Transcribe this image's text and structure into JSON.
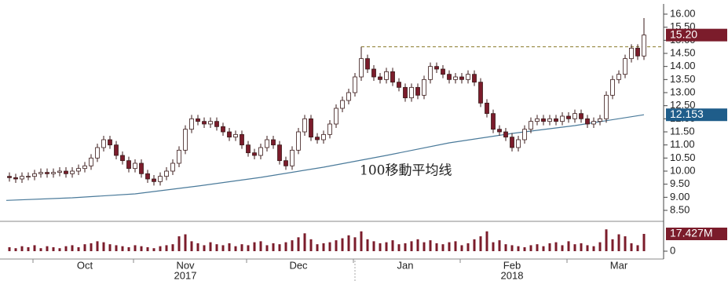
{
  "chart_data": {
    "type": "candlestick",
    "categories": [
      null,
      null,
      null,
      null,
      null,
      null,
      null,
      null,
      null,
      null,
      null,
      null,
      "Oct",
      null,
      null,
      null,
      null,
      null,
      null,
      null,
      null,
      null,
      null,
      null,
      null,
      null,
      null,
      null,
      "Nov",
      null,
      null,
      null,
      null,
      null,
      null,
      null,
      null,
      null,
      null,
      null,
      null,
      null,
      null,
      null,
      null,
      null,
      "Dec",
      null,
      null,
      null,
      null,
      null,
      null,
      null,
      null,
      null,
      null,
      null,
      null,
      null,
      null,
      null,
      null,
      "Jan",
      null,
      null,
      null,
      null,
      null,
      null,
      null,
      null,
      null,
      null,
      null,
      null,
      null,
      null,
      null,
      null,
      "Feb",
      null,
      null,
      null,
      null,
      null,
      null,
      null,
      null,
      null,
      null,
      null,
      null,
      null,
      null,
      null,
      null,
      "Mar",
      null,
      null,
      null,
      null
    ],
    "year_categories": [
      null,
      null,
      null,
      null,
      null,
      null,
      null,
      null,
      null,
      null,
      null,
      null,
      null,
      null,
      null,
      null,
      null,
      null,
      null,
      null,
      null,
      null,
      null,
      null,
      null,
      null,
      null,
      null,
      "2017",
      null,
      null,
      null,
      null,
      null,
      null,
      null,
      null,
      null,
      null,
      null,
      null,
      null,
      null,
      null,
      null,
      null,
      null,
      null,
      null,
      null,
      null,
      null,
      null,
      null,
      null,
      null,
      null,
      null,
      null,
      null,
      null,
      null,
      null,
      null,
      null,
      null,
      null,
      null,
      null,
      null,
      null,
      null,
      null,
      null,
      null,
      null,
      null,
      null,
      null,
      null,
      "2018",
      null,
      null,
      null,
      null,
      null,
      null,
      null,
      null,
      null,
      null,
      null,
      null,
      null,
      null,
      null,
      null,
      null,
      null,
      null,
      null,
      null
    ],
    "open": [
      9.8,
      9.75,
      9.7,
      9.8,
      9.8,
      9.9,
      9.95,
      9.9,
      9.95,
      10.0,
      9.9,
      10.0,
      10.1,
      10.2,
      10.5,
      10.9,
      11.2,
      11.0,
      10.6,
      10.4,
      10.1,
      10.3,
      9.9,
      9.7,
      9.6,
      9.8,
      10.0,
      10.3,
      10.8,
      11.6,
      12.0,
      11.9,
      11.8,
      11.9,
      11.7,
      11.5,
      11.3,
      11.4,
      11.0,
      10.7,
      10.6,
      10.9,
      11.2,
      11.0,
      10.4,
      10.2,
      10.8,
      11.5,
      12.0,
      11.3,
      11.2,
      11.4,
      11.8,
      12.4,
      12.7,
      13.0,
      13.6,
      14.3,
      13.9,
      13.6,
      13.5,
      13.8,
      13.4,
      13.2,
      12.8,
      13.2,
      12.9,
      13.5,
      14.0,
      13.9,
      13.7,
      13.5,
      13.6,
      13.5,
      13.7,
      13.4,
      12.6,
      12.2,
      11.6,
      11.5,
      11.3,
      10.9,
      11.2,
      11.6,
      11.9,
      12.0,
      11.9,
      12.0,
      11.9,
      12.1,
      12.0,
      12.2,
      12.0,
      11.8,
      11.9,
      12.0,
      12.9,
      13.5,
      13.7,
      14.3,
      14.7,
      14.4
    ],
    "high": [
      9.95,
      9.9,
      9.95,
      9.95,
      10.05,
      10.1,
      10.1,
      10.1,
      10.15,
      10.15,
      10.15,
      10.25,
      10.35,
      10.65,
      11.05,
      11.35,
      11.35,
      11.15,
      10.75,
      10.55,
      10.45,
      10.45,
      10.05,
      9.85,
      9.95,
      10.15,
      10.45,
      10.95,
      11.75,
      12.15,
      12.15,
      12.05,
      12.05,
      12.05,
      11.85,
      11.65,
      11.55,
      11.55,
      11.15,
      10.85,
      11.05,
      11.35,
      11.35,
      11.15,
      10.55,
      10.95,
      11.65,
      12.15,
      12.15,
      11.45,
      11.55,
      11.95,
      12.55,
      12.85,
      13.15,
      13.75,
      14.75,
      14.45,
      14.05,
      13.75,
      13.95,
      13.95,
      13.55,
      13.35,
      13.35,
      13.35,
      13.65,
      14.15,
      14.15,
      14.05,
      13.85,
      13.75,
      13.75,
      13.85,
      13.85,
      13.55,
      12.75,
      12.35,
      11.75,
      11.65,
      11.45,
      11.35,
      11.75,
      12.05,
      12.15,
      12.15,
      12.15,
      12.15,
      12.25,
      12.25,
      12.35,
      12.35,
      12.15,
      12.05,
      12.15,
      13.05,
      13.65,
      13.85,
      14.45,
      14.85,
      14.85,
      15.85
    ],
    "low": [
      9.6,
      9.55,
      9.55,
      9.65,
      9.65,
      9.75,
      9.75,
      9.75,
      9.8,
      9.75,
      9.75,
      9.85,
      9.95,
      10.05,
      10.35,
      10.75,
      10.85,
      10.45,
      10.25,
      9.95,
      9.95,
      9.75,
      9.55,
      9.45,
      9.45,
      9.65,
      9.85,
      10.15,
      10.65,
      11.45,
      11.75,
      11.65,
      11.65,
      11.55,
      11.35,
      11.15,
      11.15,
      10.85,
      10.55,
      10.45,
      10.45,
      10.75,
      10.85,
      10.25,
      10.05,
      10.05,
      10.65,
      11.35,
      11.15,
      11.05,
      11.05,
      11.25,
      11.65,
      12.25,
      12.55,
      12.85,
      13.45,
      13.75,
      13.45,
      13.35,
      13.35,
      13.25,
      13.05,
      12.65,
      12.65,
      12.75,
      12.75,
      13.35,
      13.75,
      13.55,
      13.35,
      13.35,
      13.35,
      13.35,
      13.25,
      12.45,
      12.05,
      11.45,
      11.35,
      11.15,
      10.75,
      10.75,
      11.05,
      11.45,
      11.75,
      11.75,
      11.75,
      11.75,
      11.75,
      11.85,
      11.85,
      11.85,
      11.65,
      11.65,
      11.75,
      11.85,
      12.75,
      13.35,
      13.55,
      14.15,
      14.25,
      14.25
    ],
    "close": [
      9.75,
      9.7,
      9.8,
      9.8,
      9.9,
      9.95,
      9.9,
      9.95,
      10.0,
      9.9,
      10.0,
      10.1,
      10.2,
      10.5,
      10.9,
      11.2,
      11.0,
      10.6,
      10.4,
      10.1,
      10.3,
      9.9,
      9.7,
      9.6,
      9.8,
      10.0,
      10.3,
      10.8,
      11.6,
      12.0,
      11.9,
      11.8,
      11.9,
      11.7,
      11.5,
      11.3,
      11.4,
      11.0,
      10.7,
      10.6,
      10.9,
      11.2,
      11.0,
      10.4,
      10.2,
      10.8,
      11.5,
      12.0,
      11.3,
      11.2,
      11.4,
      11.8,
      12.4,
      12.7,
      13.0,
      13.6,
      14.3,
      13.9,
      13.6,
      13.5,
      13.8,
      13.4,
      13.2,
      12.8,
      13.2,
      12.9,
      13.5,
      14.0,
      13.9,
      13.7,
      13.5,
      13.6,
      13.5,
      13.7,
      13.4,
      12.6,
      12.2,
      11.6,
      11.5,
      11.3,
      10.9,
      11.2,
      11.6,
      11.9,
      12.0,
      11.9,
      12.0,
      11.9,
      12.1,
      12.0,
      12.2,
      12.0,
      11.8,
      11.9,
      12.0,
      12.9,
      13.5,
      13.7,
      14.3,
      14.7,
      14.4,
      15.2
    ],
    "last_label_color": "#7b1c2b",
    "up_color": "#ffffff",
    "down_color": "#7b1c2b",
    "edge_color": "#3a1a1a",
    "ylim": [
      8.14,
      16.39
    ],
    "yticks": [
      {
        "value": 8.5,
        "label": "8.50"
      },
      {
        "value": 9,
        "label": "9.00"
      },
      {
        "value": 9.5,
        "label": "9.50"
      },
      {
        "value": 10,
        "label": "10.00"
      },
      {
        "value": 10.5,
        "label": "10.50"
      },
      {
        "value": 11,
        "label": "11.00"
      },
      {
        "value": 11.5,
        "label": "11.50"
      },
      {
        "value": 12,
        "label": "12.00"
      },
      {
        "value": 12.5,
        "label": "12.50"
      },
      {
        "value": 13,
        "label": "13.00"
      },
      {
        "value": 13.5,
        "label": "13.50"
      },
      {
        "value": 14,
        "label": "14.00"
      },
      {
        "value": 14.5,
        "label": "14.50"
      },
      {
        "value": 15,
        "label": "15.00"
      },
      {
        "value": 15.5,
        "label": "15.50"
      },
      {
        "value": 16,
        "label": "16.00"
      }
    ],
    "close_label": "15.20",
    "moving_average": {
      "name": "100移動平均线",
      "color": "#4a7a9a",
      "label_color": "#1f5d8a",
      "x": [
        -0.5,
        10,
        20,
        30,
        40,
        50,
        60,
        70,
        80,
        90,
        101
      ],
      "values": [
        8.88,
        8.98,
        9.13,
        9.43,
        9.76,
        10.15,
        10.6,
        11.08,
        11.44,
        11.74,
        12.153
      ]
    },
    "reference_line": {
      "value": 14.75,
      "start": 56,
      "color": "#8a7a2a"
    },
    "volume": {
      "values": [
        4,
        3,
        5,
        4,
        6,
        3,
        5,
        4,
        3,
        5,
        6,
        4,
        7,
        8,
        10,
        9,
        7,
        6,
        5,
        4,
        6,
        5,
        4,
        3,
        5,
        6,
        7,
        15,
        17,
        10,
        8,
        6,
        9,
        7,
        6,
        8,
        5,
        7,
        6,
        9,
        10,
        6,
        8,
        7,
        9,
        11,
        14,
        18,
        12,
        7,
        8,
        9,
        11,
        13,
        16,
        14,
        20,
        12,
        10,
        8,
        9,
        11,
        7,
        8,
        10,
        12,
        9,
        11,
        8,
        7,
        9,
        10,
        6,
        8,
        12,
        15,
        20,
        9,
        11,
        7,
        6,
        5,
        4,
        6,
        7,
        5,
        8,
        9,
        6,
        10,
        7,
        8,
        6,
        5,
        9,
        22,
        12,
        17,
        15,
        8,
        6,
        17.427
      ],
      "last_label": "17.427M",
      "color": "#7b1c2b",
      "ylim": [
        0,
        28.5
      ],
      "yticks": [
        0
      ]
    }
  }
}
